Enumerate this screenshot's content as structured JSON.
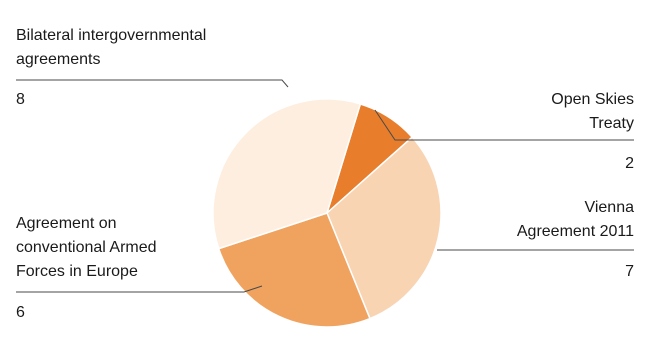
{
  "chart_data": {
    "type": "pie",
    "title": "",
    "slices": [
      {
        "label_lines": [
          "Open Skies",
          "Treaty"
        ],
        "value": 2,
        "value_text": "2",
        "color": "#e87d2c"
      },
      {
        "label_lines": [
          "Vienna",
          "Agreement 2011"
        ],
        "value": 7,
        "value_text": "7",
        "color": "#f8d4b2"
      },
      {
        "label_lines": [
          "Agreement on",
          "conventional Armed",
          "Forces in Europe"
        ],
        "value": 6,
        "value_text": "6",
        "color": "#f0a35f"
      },
      {
        "label_lines": [
          "Bilateral intergovernmental",
          "agreements"
        ],
        "value": 8,
        "value_text": "8",
        "color": "#fdeee0"
      }
    ]
  }
}
